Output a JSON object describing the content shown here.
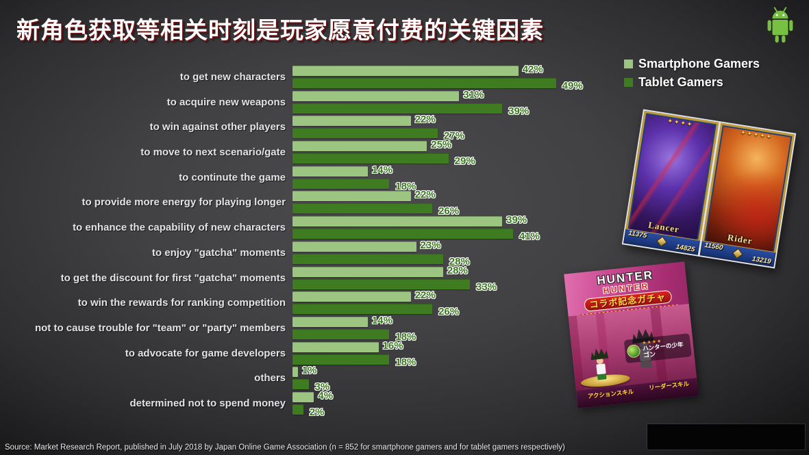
{
  "slide": {
    "title": "新角色获取等相关时刻是玩家愿意付费的关键因素",
    "source": "Source: Market Research Report, published in July 2018 by Japan Online Game Association (n = 852 for smartphone gamers and  for tablet gamers respectively)",
    "android_icon_color": "#77C043"
  },
  "chart_data": {
    "type": "bar",
    "orientation": "horizontal",
    "title": "",
    "xlabel": "",
    "ylabel": "",
    "xlim": [
      0,
      50
    ],
    "grid": false,
    "legend_position": "top-right",
    "value_suffix": "%",
    "value_label_color": "#3A7A1E",
    "categories": [
      "to get new characters",
      "to acquire new weapons",
      "to win against other players",
      "to move to next scenario/gate",
      "to continute the game",
      "to provide more energy for playing longer",
      "to enhance the capability of new characters",
      "to enjoy \"gatcha\" moments",
      "to get the discount for first \"gatcha\" moments",
      "to win the rewards for ranking competition",
      "not to cause trouble for \"team\" or \"party\" members",
      "to advocate for game developers",
      "others",
      "determined not to spend money"
    ],
    "series": [
      {
        "name": "Smartphone Gamers",
        "color": "#9CC581",
        "values": [
          42,
          31,
          22,
          25,
          14,
          22,
          39,
          23,
          28,
          22,
          14,
          16,
          1,
          4
        ]
      },
      {
        "name": "Tablet Gamers",
        "color": "#3E7B21",
        "values": [
          49,
          39,
          27,
          29,
          18,
          26,
          41,
          28,
          33,
          26,
          18,
          18,
          3,
          2
        ]
      }
    ]
  },
  "fgo_cards": {
    "cards": [
      {
        "name": "Lancer",
        "stars": "✦✦✦✦",
        "value_top": "11375",
        "value_bottom": "14825"
      },
      {
        "name": "Rider",
        "stars": "✦✦✦✦✦",
        "value_top": "11560",
        "value_bottom": "13219"
      }
    ]
  },
  "hxh_card": {
    "logo_line1": "HUNTER",
    "logo_line2": "HUNTER",
    "banner": "コラボ記念ガチャ",
    "stars": "★★★★",
    "unit_title": "ハンターの少年",
    "unit_name": "ゴン",
    "skill_left": "アクションスキル",
    "skill_right": "リーダースキル"
  }
}
